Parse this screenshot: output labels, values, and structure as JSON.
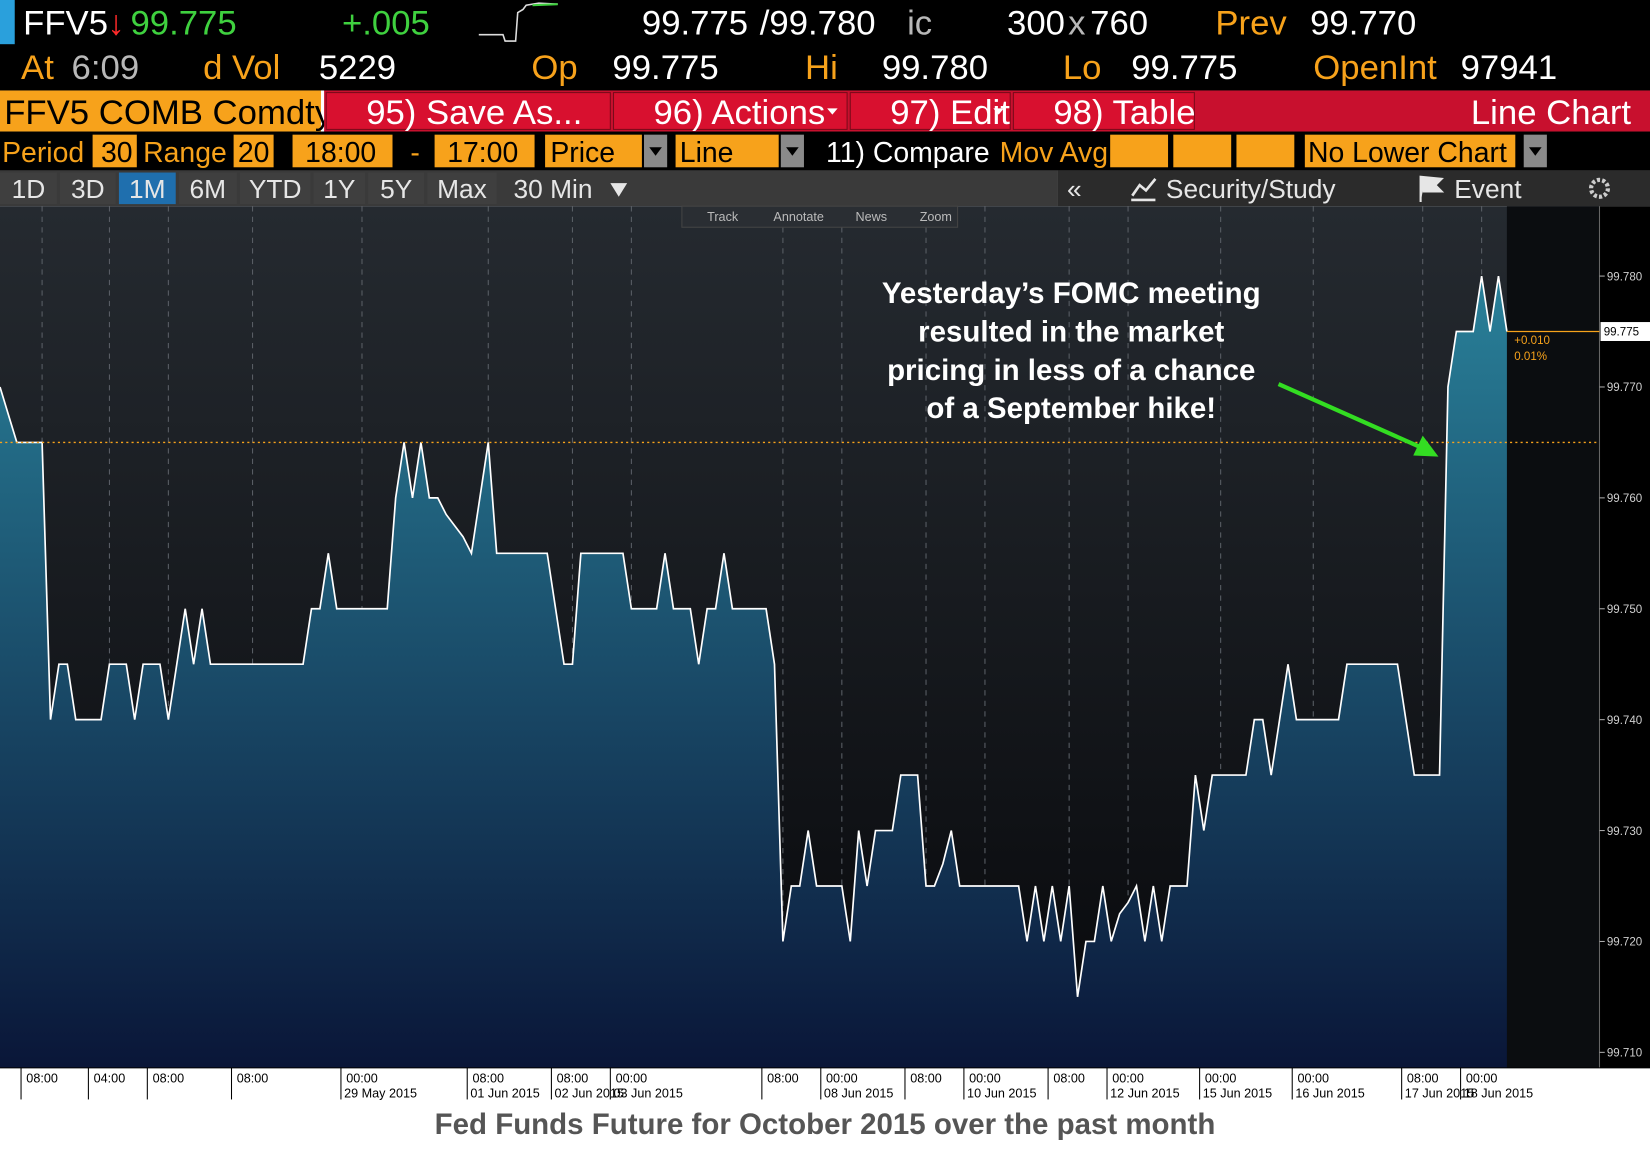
{
  "quote": {
    "ticker": "FFV5",
    "arrow": "↓",
    "last": "99.775",
    "change": "+.005",
    "bid": "99.775",
    "ask": "/99.780",
    "ask_code": "ic",
    "bid_size": "300",
    "size_sep": "x",
    "ask_size": "760",
    "prev_label": "Prev",
    "prev": "99.770"
  },
  "stats": {
    "time_label": "At",
    "time": "6:09",
    "volume_label": "d Vol",
    "volume": "5229",
    "open_label": "Op",
    "open": "99.775",
    "high_label": "Hi",
    "high": "99.780",
    "low_label": "Lo",
    "low": "99.775",
    "oi_label": "OpenInt",
    "oi": "97941"
  },
  "menu": {
    "security": "FFV5 COMB Comdty",
    "buttons": [
      "95) Save As...",
      "96) Actions",
      "97) Edit",
      "98) Table"
    ],
    "view": "Line Chart"
  },
  "settings": {
    "period_label": "Period",
    "period": "30",
    "range_label": "Range",
    "range": "20",
    "start": "18:00",
    "dash": "-",
    "end": "17:00",
    "field": "Price",
    "style": "Line",
    "compare": "11) Compare",
    "mov_avg": "Mov Avg",
    "lower": "No Lower Chart"
  },
  "tabs": {
    "ranges": [
      "1D",
      "3D",
      "1M",
      "6M",
      "YTD",
      "1Y",
      "5Y",
      "Max"
    ],
    "selected": "1M",
    "interval": "30 Min",
    "collapse": "«",
    "study": "Security/Study",
    "event": "Event"
  },
  "chart_tools": [
    "Track",
    "Annotate",
    "News",
    "Zoom"
  ],
  "chart_data": {
    "type": "line",
    "color": "#ffffff",
    "fill_top": "#2c8aa2",
    "fill_bottom": "#0a1638",
    "grid": true,
    "categories": [
      null,
      null,
      null,
      null,
      null,
      "08:00",
      null,
      null,
      null,
      null,
      null,
      null,
      null,
      "04:00",
      null,
      null,
      null,
      null,
      null,
      null,
      "08:00",
      null,
      null,
      null,
      null,
      null,
      null,
      null,
      null,
      null,
      "08:00",
      null,
      null,
      null,
      null,
      null,
      null,
      null,
      null,
      null,
      null,
      null,
      null,
      "00:00",
      null,
      null,
      null,
      null,
      null,
      null,
      null,
      null,
      null,
      null,
      null,
      null,
      null,
      null,
      "08:00",
      null,
      null,
      null,
      null,
      null,
      null,
      null,
      null,
      null,
      "08:00",
      null,
      null,
      null,
      null,
      null,
      null,
      "00:00",
      null,
      null,
      null,
      null,
      null,
      null,
      null,
      null,
      null,
      null,
      null,
      null,
      null,
      null,
      null,
      null,
      null,
      "08:00",
      null,
      null,
      null,
      null,
      null,
      null,
      "00:00",
      null,
      null,
      null,
      null,
      null,
      null,
      null,
      null,
      null,
      "08:00",
      null,
      null,
      null,
      null,
      null,
      null,
      "00:00",
      null,
      null,
      null,
      null,
      null,
      null,
      null,
      null,
      null,
      "08:00",
      null,
      null,
      null,
      null,
      null,
      null,
      "00:00",
      null,
      null,
      null,
      null,
      null,
      null,
      null,
      null,
      null,
      null,
      "00:00",
      null,
      null,
      null,
      null,
      null,
      null,
      null,
      null,
      null,
      null,
      "00:00",
      null,
      null,
      null,
      null,
      null,
      null,
      null,
      null,
      null,
      null,
      null,
      null,
      "08:00",
      null,
      null,
      null,
      null,
      null,
      null,
      "00:00",
      null,
      null,
      null
    ],
    "dates": [
      null,
      null,
      null,
      null,
      null,
      null,
      null,
      null,
      null,
      null,
      null,
      null,
      null,
      null,
      null,
      null,
      null,
      null,
      null,
      null,
      null,
      null,
      null,
      null,
      null,
      null,
      null,
      null,
      null,
      null,
      null,
      null,
      null,
      null,
      null,
      null,
      null,
      null,
      null,
      null,
      null,
      null,
      null,
      "29 May 2015",
      null,
      null,
      null,
      null,
      null,
      null,
      null,
      null,
      null,
      null,
      null,
      null,
      null,
      null,
      "01 Jun 2015",
      null,
      null,
      null,
      null,
      null,
      null,
      null,
      null,
      null,
      "02 Jun 2015",
      null,
      null,
      null,
      null,
      null,
      null,
      "03 Jun 2015",
      null,
      null,
      null,
      null,
      null,
      null,
      null,
      null,
      null,
      null,
      null,
      null,
      null,
      null,
      null,
      null,
      null,
      null,
      null,
      null,
      null,
      null,
      null,
      null,
      "08 Jun 2015",
      null,
      null,
      null,
      null,
      null,
      null,
      null,
      null,
      null,
      null,
      null,
      null,
      null,
      null,
      null,
      null,
      "10 Jun 2015",
      null,
      null,
      null,
      null,
      null,
      null,
      null,
      null,
      null,
      null,
      null,
      null,
      null,
      null,
      null,
      null,
      "12 Jun 2015",
      null,
      null,
      null,
      null,
      null,
      null,
      null,
      null,
      null,
      null,
      "15 Jun 2015",
      null,
      null,
      null,
      null,
      null,
      null,
      null,
      null,
      null,
      null,
      "16 Jun 2015",
      null,
      null,
      null,
      null,
      null,
      null,
      null,
      null,
      null,
      null,
      null,
      null,
      "17 Jun 2015",
      null,
      null,
      null,
      null,
      null,
      null,
      "18 Jun 2015",
      null,
      null,
      null
    ],
    "values": [
      99.77,
      99.7675,
      99.765,
      99.765,
      99.765,
      99.765,
      99.74,
      99.745,
      99.745,
      99.74,
      99.74,
      99.74,
      99.74,
      99.745,
      99.745,
      99.745,
      99.74,
      99.745,
      99.745,
      99.745,
      99.74,
      99.745,
      99.75,
      99.745,
      99.75,
      99.745,
      99.745,
      99.745,
      99.745,
      99.745,
      99.745,
      99.745,
      99.745,
      99.745,
      99.745,
      99.745,
      99.745,
      99.75,
      99.75,
      99.755,
      99.75,
      99.75,
      99.75,
      99.75,
      99.75,
      99.75,
      99.75,
      99.76,
      99.765,
      99.76,
      99.765,
      99.76,
      99.76,
      99.7585,
      99.7575,
      99.7565,
      99.755,
      99.76,
      99.765,
      99.755,
      99.755,
      99.755,
      99.755,
      99.755,
      99.755,
      99.755,
      99.75,
      99.745,
      99.745,
      99.755,
      99.755,
      99.755,
      99.755,
      99.755,
      99.755,
      99.75,
      99.75,
      99.75,
      99.75,
      99.755,
      99.75,
      99.75,
      99.75,
      99.745,
      99.75,
      99.75,
      99.755,
      99.75,
      99.75,
      99.75,
      99.75,
      99.75,
      99.745,
      99.72,
      99.725,
      99.725,
      99.73,
      99.725,
      99.725,
      99.725,
      99.725,
      99.72,
      99.73,
      99.725,
      99.73,
      99.73,
      99.73,
      99.735,
      99.735,
      99.735,
      99.725,
      99.725,
      99.727,
      99.73,
      99.725,
      99.725,
      99.725,
      99.725,
      99.725,
      99.725,
      99.725,
      99.725,
      99.72,
      99.725,
      99.72,
      99.725,
      99.72,
      99.725,
      99.715,
      99.72,
      99.72,
      99.725,
      99.72,
      99.7225,
      99.7235,
      99.725,
      99.72,
      99.725,
      99.72,
      99.725,
      99.725,
      99.725,
      99.735,
      99.73,
      99.735,
      99.735,
      99.735,
      99.735,
      99.735,
      99.74,
      99.74,
      99.735,
      99.74,
      99.745,
      99.74,
      99.74,
      99.74,
      99.74,
      99.74,
      99.74,
      99.745,
      99.745,
      99.745,
      99.745,
      99.745,
      99.745,
      99.745,
      99.74,
      99.735,
      99.735,
      99.735,
      99.735,
      99.77,
      99.775,
      99.775,
      99.775,
      99.78,
      99.775,
      99.78,
      99.775
    ],
    "ylim": [
      99.7086,
      99.7863
    ],
    "yticks": [
      {
        "value": 99.71,
        "label": "99.710"
      },
      {
        "value": 99.72,
        "label": "99.720"
      },
      {
        "value": 99.73,
        "label": "99.730"
      },
      {
        "value": 99.74,
        "label": "99.740"
      },
      {
        "value": 99.75,
        "label": "99.750"
      },
      {
        "value": 99.76,
        "label": "99.760"
      },
      {
        "value": 99.77,
        "label": "99.770"
      },
      {
        "value": 99.78,
        "label": "99.780"
      }
    ],
    "reference_line": 99.765,
    "last_value_label": "99.775",
    "change_label": "+0.010",
    "pct_label": "0.01%",
    "annotation": [
      "Yesterday’s FOMC meeting",
      "resulted in the market",
      "pricing in less of a chance",
      "of a September hike!"
    ]
  },
  "caption": "Fed Funds Future for October 2015 over the past month"
}
